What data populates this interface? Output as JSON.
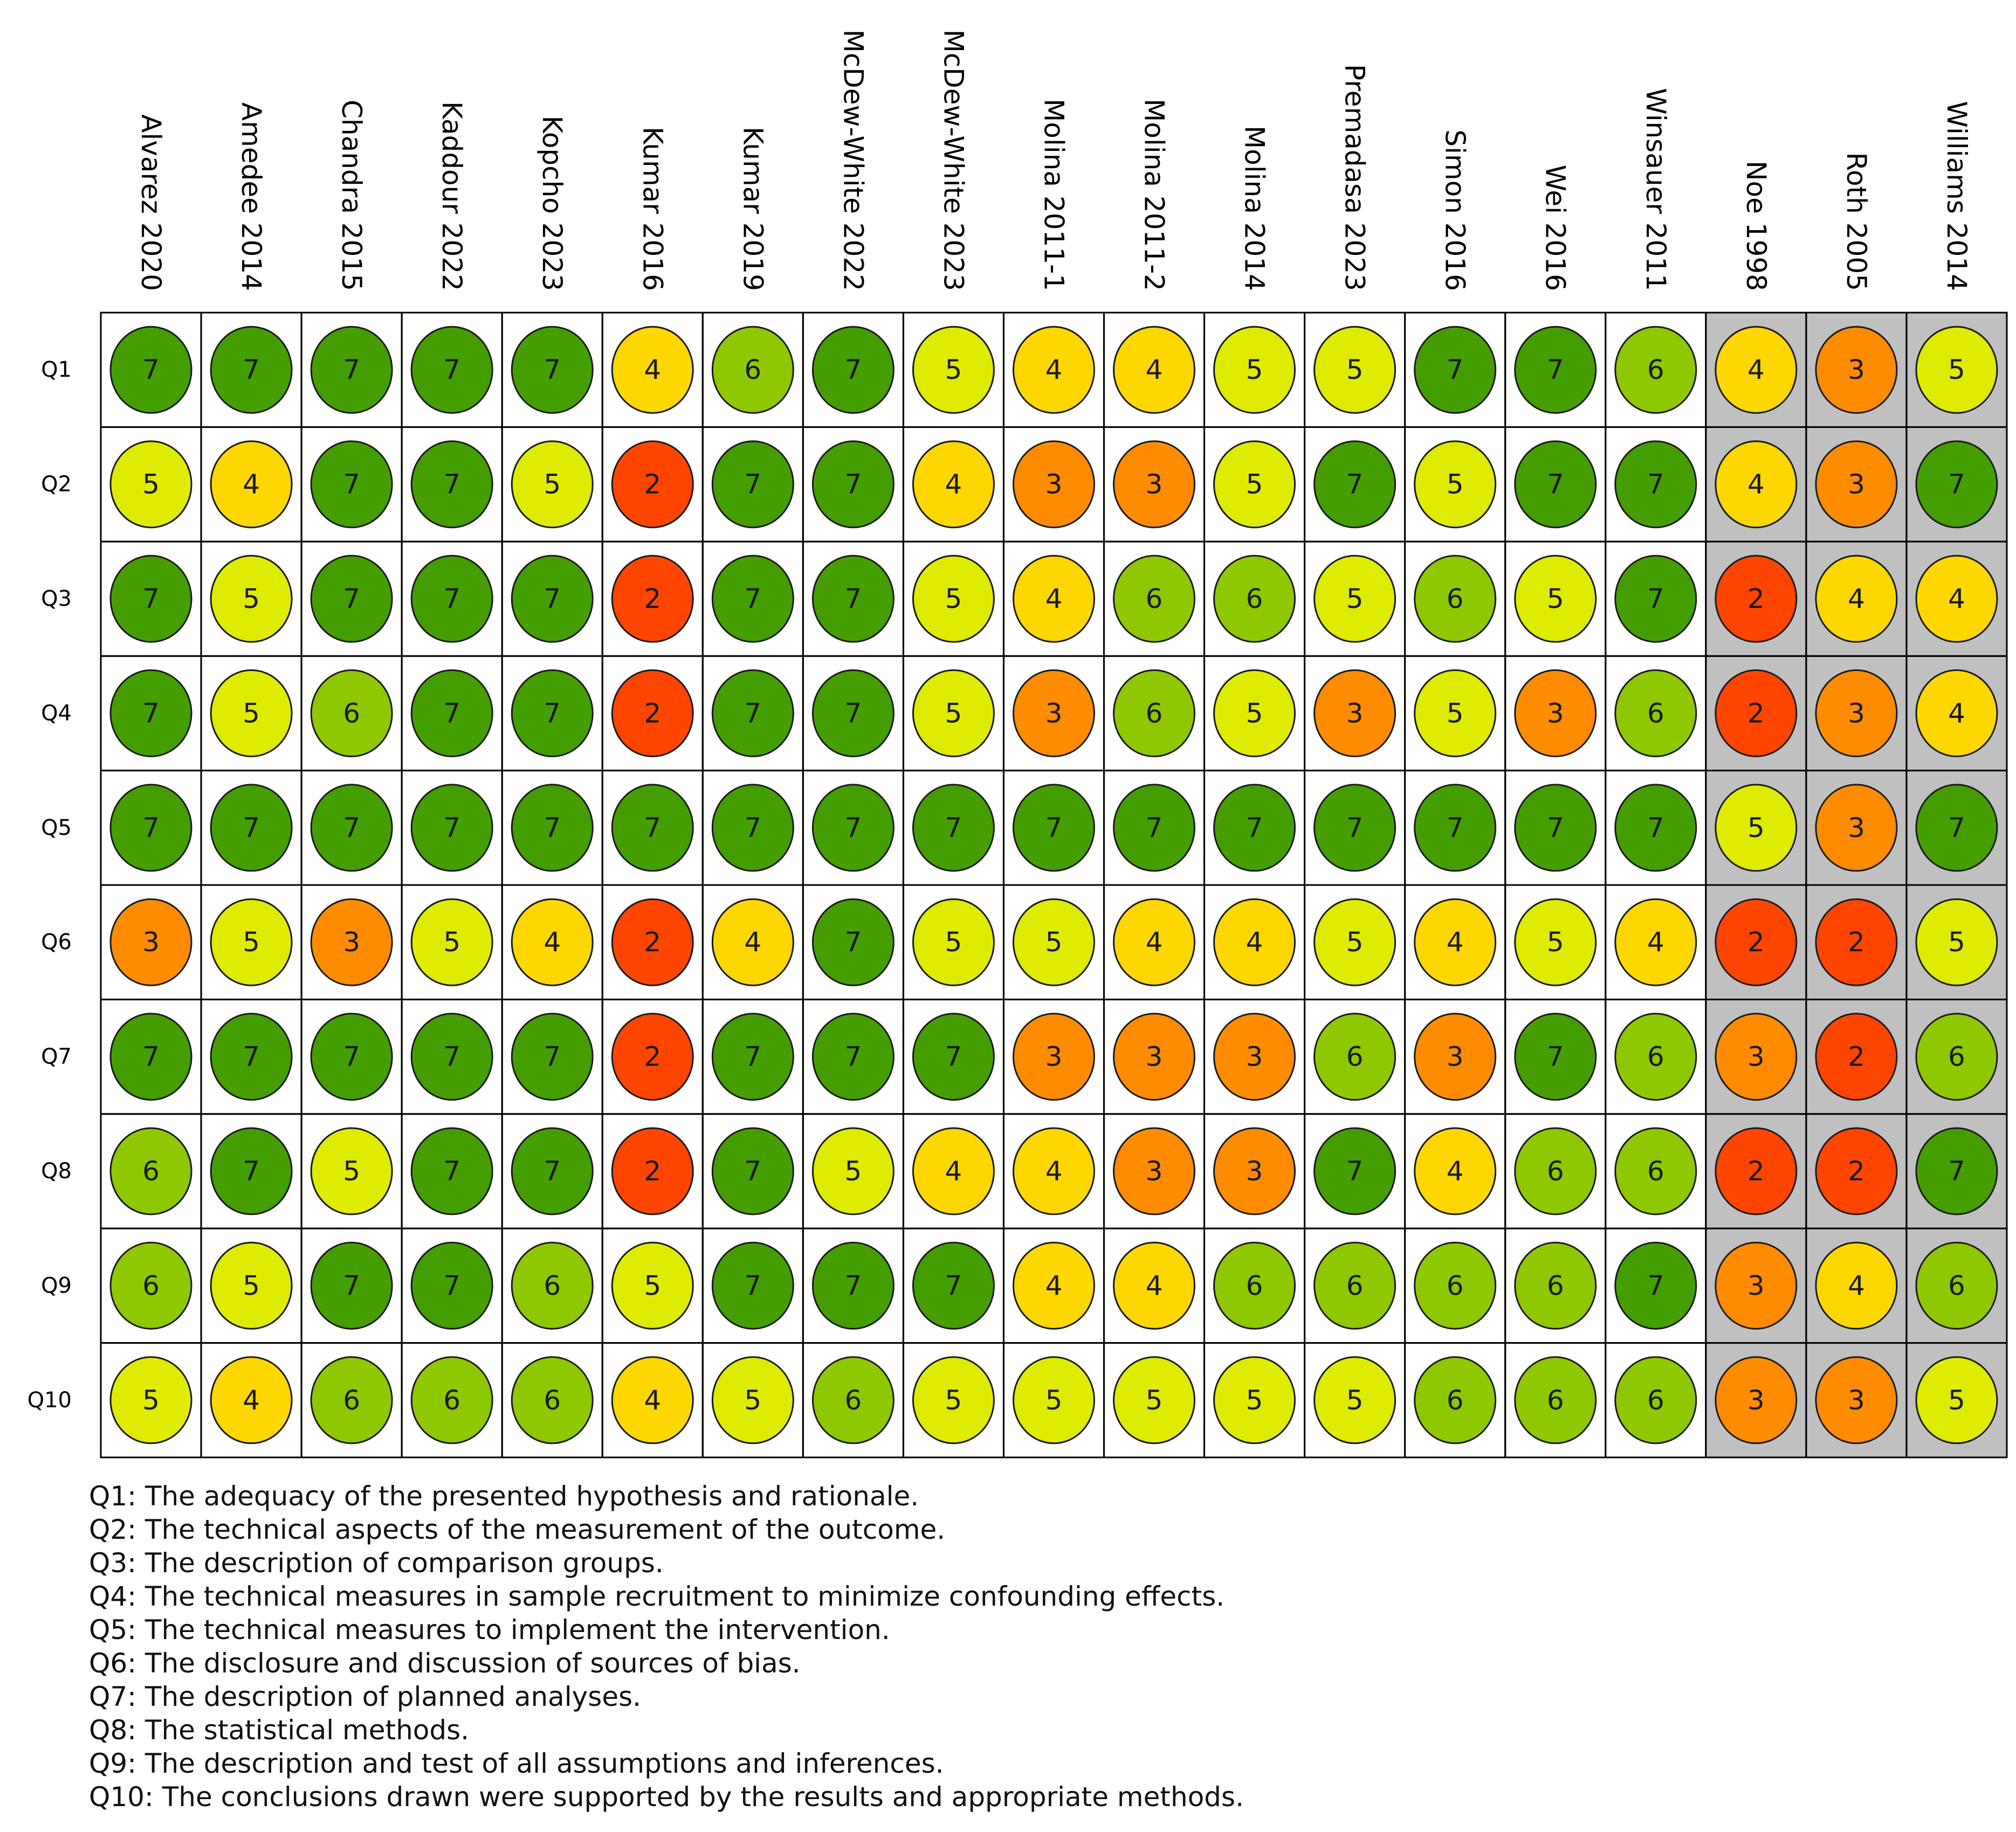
{
  "chart_data": {
    "type": "table",
    "title": "",
    "studies": [
      "Alvarez 2020",
      "Amedee 2014",
      "Chandra 2015",
      "Kaddour 2022",
      "Kopcho 2023",
      "Kumar 2016",
      "Kumar 2019",
      "McDew-White 2022",
      "McDew-White 2023",
      "Molina 2011-1",
      "Molina 2011-2",
      "Molina 2014",
      "Premadasa 2023",
      "Simon 2016",
      "Wei 2016",
      "Winsauer 2011",
      "Noe 1998",
      "Roth 2005",
      "Williams 2014"
    ],
    "shaded_studies": [
      "Noe 1998",
      "Roth 2005",
      "Williams 2014"
    ],
    "questions": [
      "Q1",
      "Q2",
      "Q3",
      "Q4",
      "Q5",
      "Q6",
      "Q7",
      "Q8",
      "Q9",
      "Q10"
    ],
    "scores": [
      [
        7,
        7,
        7,
        7,
        7,
        4,
        6,
        7,
        5,
        4,
        4,
        5,
        5,
        7,
        7,
        6,
        4,
        3,
        5
      ],
      [
        5,
        4,
        7,
        7,
        5,
        2,
        7,
        7,
        4,
        3,
        3,
        5,
        7,
        5,
        7,
        7,
        4,
        3,
        7
      ],
      [
        7,
        5,
        7,
        7,
        7,
        2,
        7,
        7,
        5,
        4,
        6,
        6,
        5,
        6,
        5,
        7,
        2,
        4,
        4
      ],
      [
        7,
        5,
        6,
        7,
        7,
        2,
        7,
        7,
        5,
        3,
        6,
        5,
        3,
        5,
        3,
        6,
        2,
        3,
        4
      ],
      [
        7,
        7,
        7,
        7,
        7,
        7,
        7,
        7,
        7,
        7,
        7,
        7,
        7,
        7,
        7,
        7,
        5,
        3,
        7
      ],
      [
        3,
        5,
        3,
        5,
        4,
        2,
        4,
        7,
        5,
        5,
        4,
        4,
        5,
        4,
        5,
        4,
        2,
        2,
        5
      ],
      [
        7,
        7,
        7,
        7,
        7,
        2,
        7,
        7,
        7,
        3,
        3,
        3,
        6,
        3,
        7,
        6,
        3,
        2,
        6
      ],
      [
        6,
        7,
        5,
        7,
        7,
        2,
        7,
        5,
        4,
        4,
        3,
        3,
        7,
        4,
        6,
        6,
        2,
        2,
        7
      ],
      [
        6,
        5,
        7,
        7,
        6,
        5,
        7,
        7,
        7,
        4,
        4,
        6,
        6,
        6,
        6,
        7,
        3,
        4,
        6
      ],
      [
        5,
        4,
        6,
        6,
        6,
        4,
        5,
        6,
        5,
        5,
        5,
        5,
        5,
        6,
        6,
        6,
        3,
        3,
        5
      ]
    ],
    "score_colors": {
      "2": "#ff4500",
      "3": "#ff8c00",
      "4": "#ffd700",
      "5": "#dfeb00",
      "6": "#8ec800",
      "7": "#449e00"
    },
    "shade_color": "#c0c0c0",
    "legend": [
      "Q1: The adequacy of the presented hypothesis and rationale.",
      "Q2: The technical aspects of the measurement of the outcome.",
      "Q3: The description of comparison groups.",
      "Q4: The technical measures in sample recruitment to minimize confounding effects.",
      "Q5: The technical measures to implement the intervention.",
      "Q6: The disclosure and discussion of sources of bias.",
      "Q7: The description of planned analyses.",
      "Q8: The statistical methods.",
      "Q9: The description and test of all assumptions and inferences.",
      "Q10: The conclusions drawn were supported by the results and appropriate methods."
    ]
  }
}
